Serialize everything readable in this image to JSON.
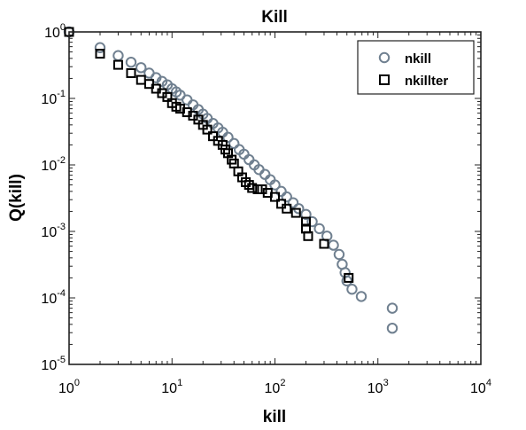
{
  "chart_data": {
    "type": "scatter",
    "title": "Kill",
    "xlabel": "kill",
    "ylabel": "Q(kill)",
    "xscale": "log",
    "yscale": "log",
    "xlim": [
      1,
      10000
    ],
    "ylim": [
      1e-05,
      1
    ],
    "x_ticks": [
      {
        "base": "10",
        "exp": "0",
        "value": 1
      },
      {
        "base": "10",
        "exp": "1",
        "value": 10
      },
      {
        "base": "10",
        "exp": "2",
        "value": 100
      },
      {
        "base": "10",
        "exp": "3",
        "value": 1000
      },
      {
        "base": "10",
        "exp": "4",
        "value": 10000
      }
    ],
    "y_ticks": [
      {
        "base": "10",
        "exp": "0",
        "value": 1
      },
      {
        "base": "10",
        "exp": "-1",
        "value": 0.1
      },
      {
        "base": "10",
        "exp": "-2",
        "value": 0.01
      },
      {
        "base": "10",
        "exp": "-3",
        "value": 0.001
      },
      {
        "base": "10",
        "exp": "-4",
        "value": 0.0001
      },
      {
        "base": "10",
        "exp": "-5",
        "value": 1e-05
      }
    ],
    "grid": false,
    "legend_position": "top-right",
    "series": [
      {
        "name": "nkill",
        "marker": "circle",
        "color": "#708090",
        "points": [
          [
            1,
            1.0
          ],
          [
            2,
            0.58
          ],
          [
            3,
            0.44
          ],
          [
            4,
            0.35
          ],
          [
            5,
            0.29
          ],
          [
            6,
            0.24
          ],
          [
            7,
            0.205
          ],
          [
            8,
            0.18
          ],
          [
            9,
            0.16
          ],
          [
            10,
            0.14
          ],
          [
            11,
            0.125
          ],
          [
            12,
            0.112
          ],
          [
            14,
            0.095
          ],
          [
            16,
            0.08
          ],
          [
            18,
            0.068
          ],
          [
            20,
            0.058
          ],
          [
            22,
            0.05
          ],
          [
            25,
            0.042
          ],
          [
            28,
            0.036
          ],
          [
            31,
            0.031
          ],
          [
            35,
            0.026
          ],
          [
            40,
            0.021
          ],
          [
            45,
            0.017
          ],
          [
            50,
            0.0145
          ],
          [
            56,
            0.012
          ],
          [
            63,
            0.01
          ],
          [
            70,
            0.0085
          ],
          [
            80,
            0.0072
          ],
          [
            90,
            0.006
          ],
          [
            100,
            0.005
          ],
          [
            115,
            0.004
          ],
          [
            130,
            0.0033
          ],
          [
            150,
            0.0027
          ],
          [
            170,
            0.0022
          ],
          [
            200,
            0.0018
          ],
          [
            230,
            0.0014
          ],
          [
            270,
            0.0011
          ],
          [
            320,
            0.00085
          ],
          [
            370,
            0.00062
          ],
          [
            420,
            0.00045
          ],
          [
            450,
            0.00032
          ],
          [
            480,
            0.00024
          ],
          [
            500,
            0.00018
          ],
          [
            560,
            0.000135
          ],
          [
            690,
            0.000105
          ],
          [
            1380,
            7e-05
          ],
          [
            1380,
            3.5e-05
          ]
        ]
      },
      {
        "name": "nkillter",
        "marker": "square",
        "color": "#000000",
        "points": [
          [
            1,
            1.0
          ],
          [
            2,
            0.47
          ],
          [
            3,
            0.32
          ],
          [
            4,
            0.24
          ],
          [
            5,
            0.19
          ],
          [
            6,
            0.165
          ],
          [
            7,
            0.14
          ],
          [
            8,
            0.12
          ],
          [
            9,
            0.105
          ],
          [
            10,
            0.085
          ],
          [
            11,
            0.075
          ],
          [
            12,
            0.07
          ],
          [
            14,
            0.062
          ],
          [
            16,
            0.055
          ],
          [
            18,
            0.048
          ],
          [
            20,
            0.04
          ],
          [
            22,
            0.034
          ],
          [
            25,
            0.027
          ],
          [
            28,
            0.023
          ],
          [
            31,
            0.02
          ],
          [
            33,
            0.017
          ],
          [
            35,
            0.015
          ],
          [
            38,
            0.012
          ],
          [
            40,
            0.0105
          ],
          [
            44,
            0.008
          ],
          [
            48,
            0.0065
          ],
          [
            52,
            0.0055
          ],
          [
            56,
            0.005
          ],
          [
            60,
            0.0045
          ],
          [
            68,
            0.0043
          ],
          [
            75,
            0.0043
          ],
          [
            85,
            0.0038
          ],
          [
            100,
            0.0033
          ],
          [
            115,
            0.0026
          ],
          [
            130,
            0.0022
          ],
          [
            160,
            0.0019
          ],
          [
            200,
            0.0014
          ],
          [
            200,
            0.0011
          ],
          [
            210,
            0.00085
          ],
          [
            300,
            0.00065
          ],
          [
            520,
            0.0002
          ]
        ]
      }
    ]
  }
}
